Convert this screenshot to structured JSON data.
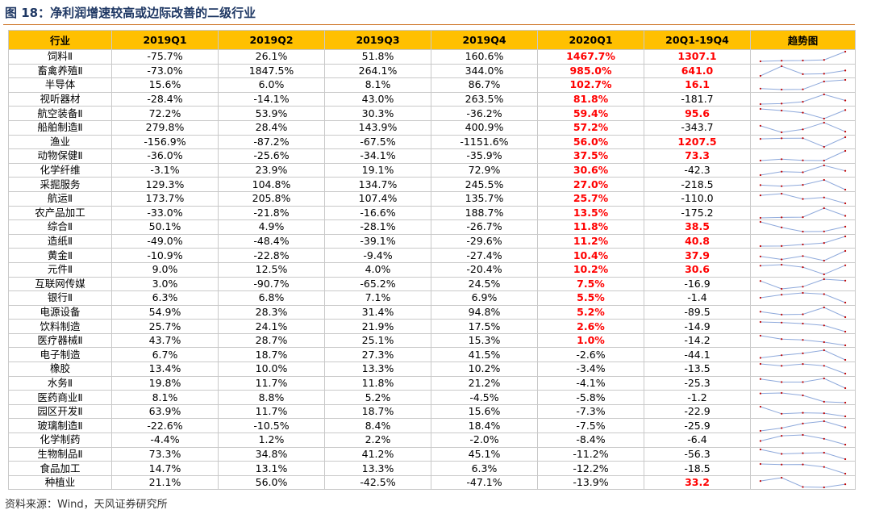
{
  "title": "图 18：净利润增速较高或边际改善的二级行业",
  "source": "资料来源：Wind，天风证券研究所",
  "colors": {
    "header_bg": "#ffc000",
    "highlight": "#ff0000",
    "sparkline": "#8ea9db",
    "marker": "#c00000"
  },
  "headers": [
    "行业",
    "2019Q1",
    "2019Q2",
    "2019Q3",
    "2019Q4",
    "2020Q1",
    "20Q1-19Q4",
    "趋势图"
  ],
  "rows": [
    {
      "industry": "饲料Ⅱ",
      "q1": "-75.7%",
      "q2": "26.1%",
      "q3": "51.8%",
      "q4": "160.6%",
      "q2020": "1467.7%",
      "diff": "1307.1",
      "red2020": true,
      "redDiff": true,
      "series": [
        -75.7,
        26.1,
        51.8,
        160.6,
        1467.7
      ]
    },
    {
      "industry": "畜禽养殖Ⅱ",
      "q1": "-73.0%",
      "q2": "1847.5%",
      "q3": "264.1%",
      "q4": "344.0%",
      "q2020": "985.0%",
      "diff": "641.0",
      "red2020": true,
      "redDiff": true,
      "series": [
        -73.0,
        1847.5,
        264.1,
        344.0,
        985.0
      ]
    },
    {
      "industry": "半导体",
      "q1": "15.6%",
      "q2": "6.0%",
      "q3": "8.1%",
      "q4": "86.7%",
      "q2020": "102.7%",
      "diff": "16.1",
      "red2020": true,
      "redDiff": true,
      "series": [
        15.6,
        6.0,
        8.1,
        86.7,
        102.7
      ]
    },
    {
      "industry": "视听器材",
      "q1": "-28.4%",
      "q2": "-14.1%",
      "q3": "43.0%",
      "q4": "263.5%",
      "q2020": "81.8%",
      "diff": "-181.7",
      "red2020": true,
      "redDiff": false,
      "series": [
        -28.4,
        -14.1,
        43.0,
        263.5,
        81.8
      ]
    },
    {
      "industry": "航空装备Ⅱ",
      "q1": "72.2%",
      "q2": "53.9%",
      "q3": "30.3%",
      "q4": "-36.2%",
      "q2020": "59.4%",
      "diff": "95.6",
      "red2020": true,
      "redDiff": true,
      "series": [
        72.2,
        53.9,
        30.3,
        -36.2,
        59.4
      ]
    },
    {
      "industry": "船舶制造Ⅱ",
      "q1": "279.8%",
      "q2": "28.4%",
      "q3": "143.9%",
      "q4": "400.9%",
      "q2020": "57.2%",
      "diff": "-343.7",
      "red2020": true,
      "redDiff": false,
      "series": [
        279.8,
        28.4,
        143.9,
        400.9,
        57.2
      ]
    },
    {
      "industry": "渔业",
      "q1": "-156.9%",
      "q2": "-87.2%",
      "q3": "-67.5%",
      "q4": "-1151.6%",
      "q2020": "56.0%",
      "diff": "1207.5",
      "red2020": true,
      "redDiff": true,
      "series": [
        -156.9,
        -87.2,
        -67.5,
        -1151.6,
        56.0
      ]
    },
    {
      "industry": "动物保健Ⅱ",
      "q1": "-36.0%",
      "q2": "-25.6%",
      "q3": "-34.1%",
      "q4": "-35.9%",
      "q2020": "37.5%",
      "diff": "73.3",
      "red2020": true,
      "redDiff": true,
      "series": [
        -36.0,
        -25.6,
        -34.1,
        -35.9,
        37.5
      ]
    },
    {
      "industry": "化学纤维",
      "q1": "-3.1%",
      "q2": "23.9%",
      "q3": "19.1%",
      "q4": "72.9%",
      "q2020": "30.6%",
      "diff": "-42.3",
      "red2020": true,
      "redDiff": false,
      "series": [
        -3.1,
        23.9,
        19.1,
        72.9,
        30.6
      ]
    },
    {
      "industry": "采掘服务",
      "q1": "129.3%",
      "q2": "104.8%",
      "q3": "134.7%",
      "q4": "245.5%",
      "q2020": "27.0%",
      "diff": "-218.5",
      "red2020": true,
      "redDiff": false,
      "series": [
        129.3,
        104.8,
        134.7,
        245.5,
        27.0
      ]
    },
    {
      "industry": "航运Ⅱ",
      "q1": "173.7%",
      "q2": "205.8%",
      "q3": "107.4%",
      "q4": "135.7%",
      "q2020": "25.7%",
      "diff": "-110.0",
      "red2020": true,
      "redDiff": false,
      "series": [
        173.7,
        205.8,
        107.4,
        135.7,
        25.7
      ]
    },
    {
      "industry": "农产品加工",
      "q1": "-33.0%",
      "q2": "-21.8%",
      "q3": "-16.6%",
      "q4": "188.7%",
      "q2020": "13.5%",
      "diff": "-175.2",
      "red2020": true,
      "redDiff": false,
      "series": [
        -33.0,
        -21.8,
        -16.6,
        188.7,
        13.5
      ]
    },
    {
      "industry": "综合Ⅱ",
      "q1": "50.1%",
      "q2": "4.9%",
      "q3": "-28.1%",
      "q4": "-26.7%",
      "q2020": "11.8%",
      "diff": "38.5",
      "red2020": true,
      "redDiff": true,
      "series": [
        50.1,
        4.9,
        -28.1,
        -26.7,
        11.8
      ]
    },
    {
      "industry": "造纸Ⅱ",
      "q1": "-49.0%",
      "q2": "-48.4%",
      "q3": "-39.1%",
      "q4": "-29.6%",
      "q2020": "11.2%",
      "diff": "40.8",
      "red2020": true,
      "redDiff": true,
      "series": [
        -49.0,
        -48.4,
        -39.1,
        -29.6,
        11.2
      ]
    },
    {
      "industry": "黄金Ⅱ",
      "q1": "-10.9%",
      "q2": "-22.8%",
      "q3": "-9.4%",
      "q4": "-27.4%",
      "q2020": "10.4%",
      "diff": "37.9",
      "red2020": true,
      "redDiff": true,
      "series": [
        -10.9,
        -22.8,
        -9.4,
        -27.4,
        10.4
      ]
    },
    {
      "industry": "元件Ⅱ",
      "q1": "9.0%",
      "q2": "12.5%",
      "q3": "4.0%",
      "q4": "-20.4%",
      "q2020": "10.2%",
      "diff": "30.6",
      "red2020": true,
      "redDiff": true,
      "series": [
        9.0,
        12.5,
        4.0,
        -20.4,
        10.2
      ]
    },
    {
      "industry": "互联网传媒",
      "q1": "3.0%",
      "q2": "-90.7%",
      "q3": "-65.2%",
      "q4": "24.5%",
      "q2020": "7.5%",
      "diff": "-16.9",
      "red2020": true,
      "redDiff": false,
      "series": [
        3.0,
        -90.7,
        -65.2,
        24.5,
        7.5
      ]
    },
    {
      "industry": "银行Ⅱ",
      "q1": "6.3%",
      "q2": "6.8%",
      "q3": "7.1%",
      "q4": "6.9%",
      "q2020": "5.5%",
      "diff": "-1.4",
      "red2020": true,
      "redDiff": false,
      "series": [
        6.3,
        6.8,
        7.1,
        6.9,
        5.5
      ]
    },
    {
      "industry": "电源设备",
      "q1": "54.9%",
      "q2": "28.3%",
      "q3": "31.4%",
      "q4": "94.8%",
      "q2020": "5.2%",
      "diff": "-89.5",
      "red2020": true,
      "redDiff": false,
      "series": [
        54.9,
        28.3,
        31.4,
        94.8,
        5.2
      ]
    },
    {
      "industry": "饮料制造",
      "q1": "25.7%",
      "q2": "24.1%",
      "q3": "21.9%",
      "q4": "17.5%",
      "q2020": "2.6%",
      "diff": "-14.9",
      "red2020": true,
      "redDiff": false,
      "series": [
        25.7,
        24.1,
        21.9,
        17.5,
        2.6
      ]
    },
    {
      "industry": "医疗器械Ⅱ",
      "q1": "43.7%",
      "q2": "28.7%",
      "q3": "25.1%",
      "q4": "15.3%",
      "q2020": "1.0%",
      "diff": "-14.2",
      "red2020": true,
      "redDiff": false,
      "series": [
        43.7,
        28.7,
        25.1,
        15.3,
        1.0
      ]
    },
    {
      "industry": "电子制造",
      "q1": "6.7%",
      "q2": "18.7%",
      "q3": "27.3%",
      "q4": "41.5%",
      "q2020": "-2.6%",
      "diff": "-44.1",
      "red2020": false,
      "redDiff": false,
      "series": [
        6.7,
        18.7,
        27.3,
        41.5,
        -2.6
      ]
    },
    {
      "industry": "橡胶",
      "q1": "13.4%",
      "q2": "10.0%",
      "q3": "13.3%",
      "q4": "10.2%",
      "q2020": "-3.4%",
      "diff": "-13.5",
      "red2020": false,
      "redDiff": false,
      "series": [
        13.4,
        10.0,
        13.3,
        10.2,
        -3.4
      ]
    },
    {
      "industry": "水务Ⅱ",
      "q1": "19.8%",
      "q2": "11.7%",
      "q3": "11.8%",
      "q4": "21.2%",
      "q2020": "-4.1%",
      "diff": "-25.3",
      "red2020": false,
      "redDiff": false,
      "series": [
        19.8,
        11.7,
        11.8,
        21.2,
        -4.1
      ]
    },
    {
      "industry": "医药商业Ⅱ",
      "q1": "8.1%",
      "q2": "8.8%",
      "q3": "5.2%",
      "q4": "-4.5%",
      "q2020": "-5.8%",
      "diff": "-1.2",
      "red2020": false,
      "redDiff": false,
      "series": [
        8.1,
        8.8,
        5.2,
        -4.5,
        -5.8
      ]
    },
    {
      "industry": "园区开发Ⅱ",
      "q1": "63.9%",
      "q2": "11.7%",
      "q3": "18.7%",
      "q4": "15.6%",
      "q2020": "-7.3%",
      "diff": "-22.9",
      "red2020": false,
      "redDiff": false,
      "series": [
        63.9,
        11.7,
        18.7,
        15.6,
        -7.3
      ]
    },
    {
      "industry": "玻璃制造Ⅱ",
      "q1": "-22.6%",
      "q2": "-10.5%",
      "q3": "8.4%",
      "q4": "18.4%",
      "q2020": "-7.5%",
      "diff": "-25.9",
      "red2020": false,
      "redDiff": false,
      "series": [
        -22.6,
        -10.5,
        8.4,
        18.4,
        -7.5
      ]
    },
    {
      "industry": "化学制药",
      "q1": "-4.4%",
      "q2": "1.2%",
      "q3": "2.2%",
      "q4": "-2.0%",
      "q2020": "-8.4%",
      "diff": "-6.4",
      "red2020": false,
      "redDiff": false,
      "series": [
        -4.4,
        1.2,
        2.2,
        -2.0,
        -8.4
      ]
    },
    {
      "industry": "生物制品Ⅱ",
      "q1": "73.3%",
      "q2": "34.8%",
      "q3": "41.2%",
      "q4": "45.1%",
      "q2020": "-11.2%",
      "diff": "-56.3",
      "red2020": false,
      "redDiff": false,
      "series": [
        73.3,
        34.8,
        41.2,
        45.1,
        -11.2
      ]
    },
    {
      "industry": "食品加工",
      "q1": "14.7%",
      "q2": "13.1%",
      "q3": "13.3%",
      "q4": "6.3%",
      "q2020": "-12.2%",
      "diff": "-18.5",
      "red2020": false,
      "redDiff": false,
      "series": [
        14.7,
        13.1,
        13.3,
        6.3,
        -12.2
      ]
    },
    {
      "industry": "种植业",
      "q1": "21.1%",
      "q2": "56.0%",
      "q3": "-42.5%",
      "q4": "-47.1%",
      "q2020": "-13.9%",
      "diff": "33.2",
      "red2020": false,
      "redDiff": true,
      "series": [
        21.1,
        56.0,
        -42.5,
        -47.1,
        -13.9
      ]
    }
  ]
}
